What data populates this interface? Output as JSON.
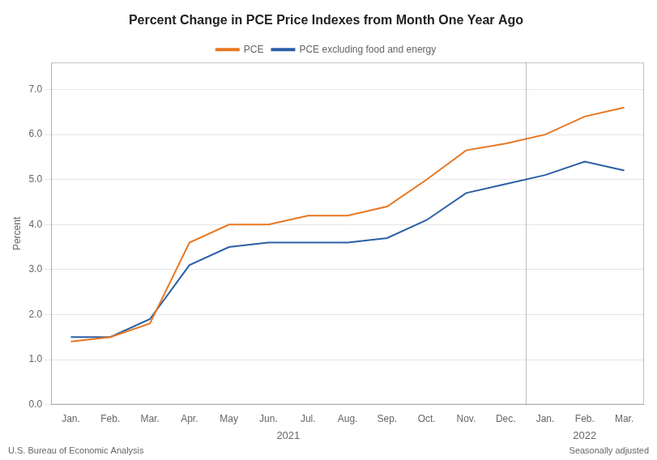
{
  "chart_data": {
    "type": "line",
    "title": "Percent Change in PCE Price Indexes from Month One Year Ago",
    "ylabel": "Percent",
    "categories": [
      "Jan.",
      "Feb.",
      "Mar.",
      "Apr.",
      "May",
      "Jun.",
      "Jul.",
      "Aug.",
      "Sep.",
      "Oct.",
      "Nov.",
      "Dec.",
      "Jan.",
      "Feb.",
      "Mar."
    ],
    "x_groups": [
      {
        "label": "2021",
        "count": 12
      },
      {
        "label": "2022",
        "count": 3
      }
    ],
    "series": [
      {
        "name": "PCE",
        "color": "#E87722",
        "values": [
          1.4,
          1.5,
          1.8,
          3.6,
          4.0,
          4.0,
          4.2,
          4.2,
          4.4,
          5.0,
          5.65,
          5.8,
          6.0,
          6.4,
          6.6
        ]
      },
      {
        "name": "PCE excluding food and energy",
        "color": "#2B5FA5",
        "values": [
          1.5,
          1.5,
          1.9,
          3.1,
          3.5,
          3.6,
          3.6,
          3.6,
          3.7,
          4.1,
          4.7,
          4.9,
          5.1,
          5.4,
          5.2
        ]
      }
    ],
    "ylim": [
      0.0,
      7.6
    ],
    "yticks": [
      {
        "value": 0,
        "label": "0.0"
      },
      {
        "value": 1,
        "label": "1.0"
      },
      {
        "value": 2,
        "label": "2.0"
      },
      {
        "value": 3,
        "label": "3.0"
      },
      {
        "value": 4,
        "label": "4.0"
      },
      {
        "value": 5,
        "label": "5.0"
      },
      {
        "value": 6,
        "label": "6.0"
      },
      {
        "value": 7,
        "label": "7.0"
      }
    ],
    "grid": true,
    "legend": "top",
    "notes": [
      "U.S. Bureau of Economic Analysis",
      "Seasonally adjusted"
    ]
  }
}
